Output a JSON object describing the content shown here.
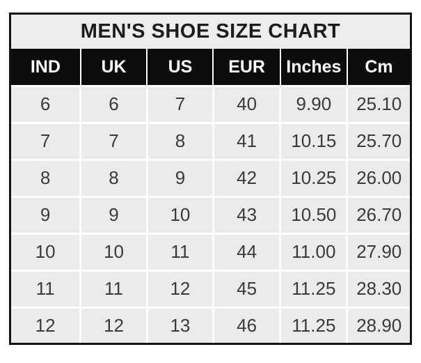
{
  "chart_data": {
    "type": "table",
    "title": "MEN'S SHOE SIZE CHART",
    "columns": [
      "IND",
      "UK",
      "US",
      "EUR",
      "Inches",
      "Cm"
    ],
    "rows": [
      [
        "6",
        "6",
        "7",
        "40",
        "9.90",
        "25.10"
      ],
      [
        "7",
        "7",
        "8",
        "41",
        "10.15",
        "25.70"
      ],
      [
        "8",
        "8",
        "9",
        "42",
        "10.25",
        "26.00"
      ],
      [
        "9",
        "9",
        "10",
        "43",
        "10.50",
        "26.70"
      ],
      [
        "10",
        "10",
        "11",
        "44",
        "11.00",
        "27.90"
      ],
      [
        "11",
        "11",
        "12",
        "45",
        "11.25",
        "28.30"
      ],
      [
        "12",
        "12",
        "13",
        "46",
        "11.25",
        "28.90"
      ]
    ],
    "layout": {
      "grid": "on",
      "header_position": "top"
    }
  },
  "colors": {
    "title_bg": "#ededed",
    "title_text": "#1c1c1c",
    "header_bg": "#0d0c0a",
    "header_text": "#ffffff",
    "cell_bg": "#ebebeb",
    "grid": "#ffffff",
    "frame_border": "#141414",
    "text": "#3a3a3a"
  }
}
